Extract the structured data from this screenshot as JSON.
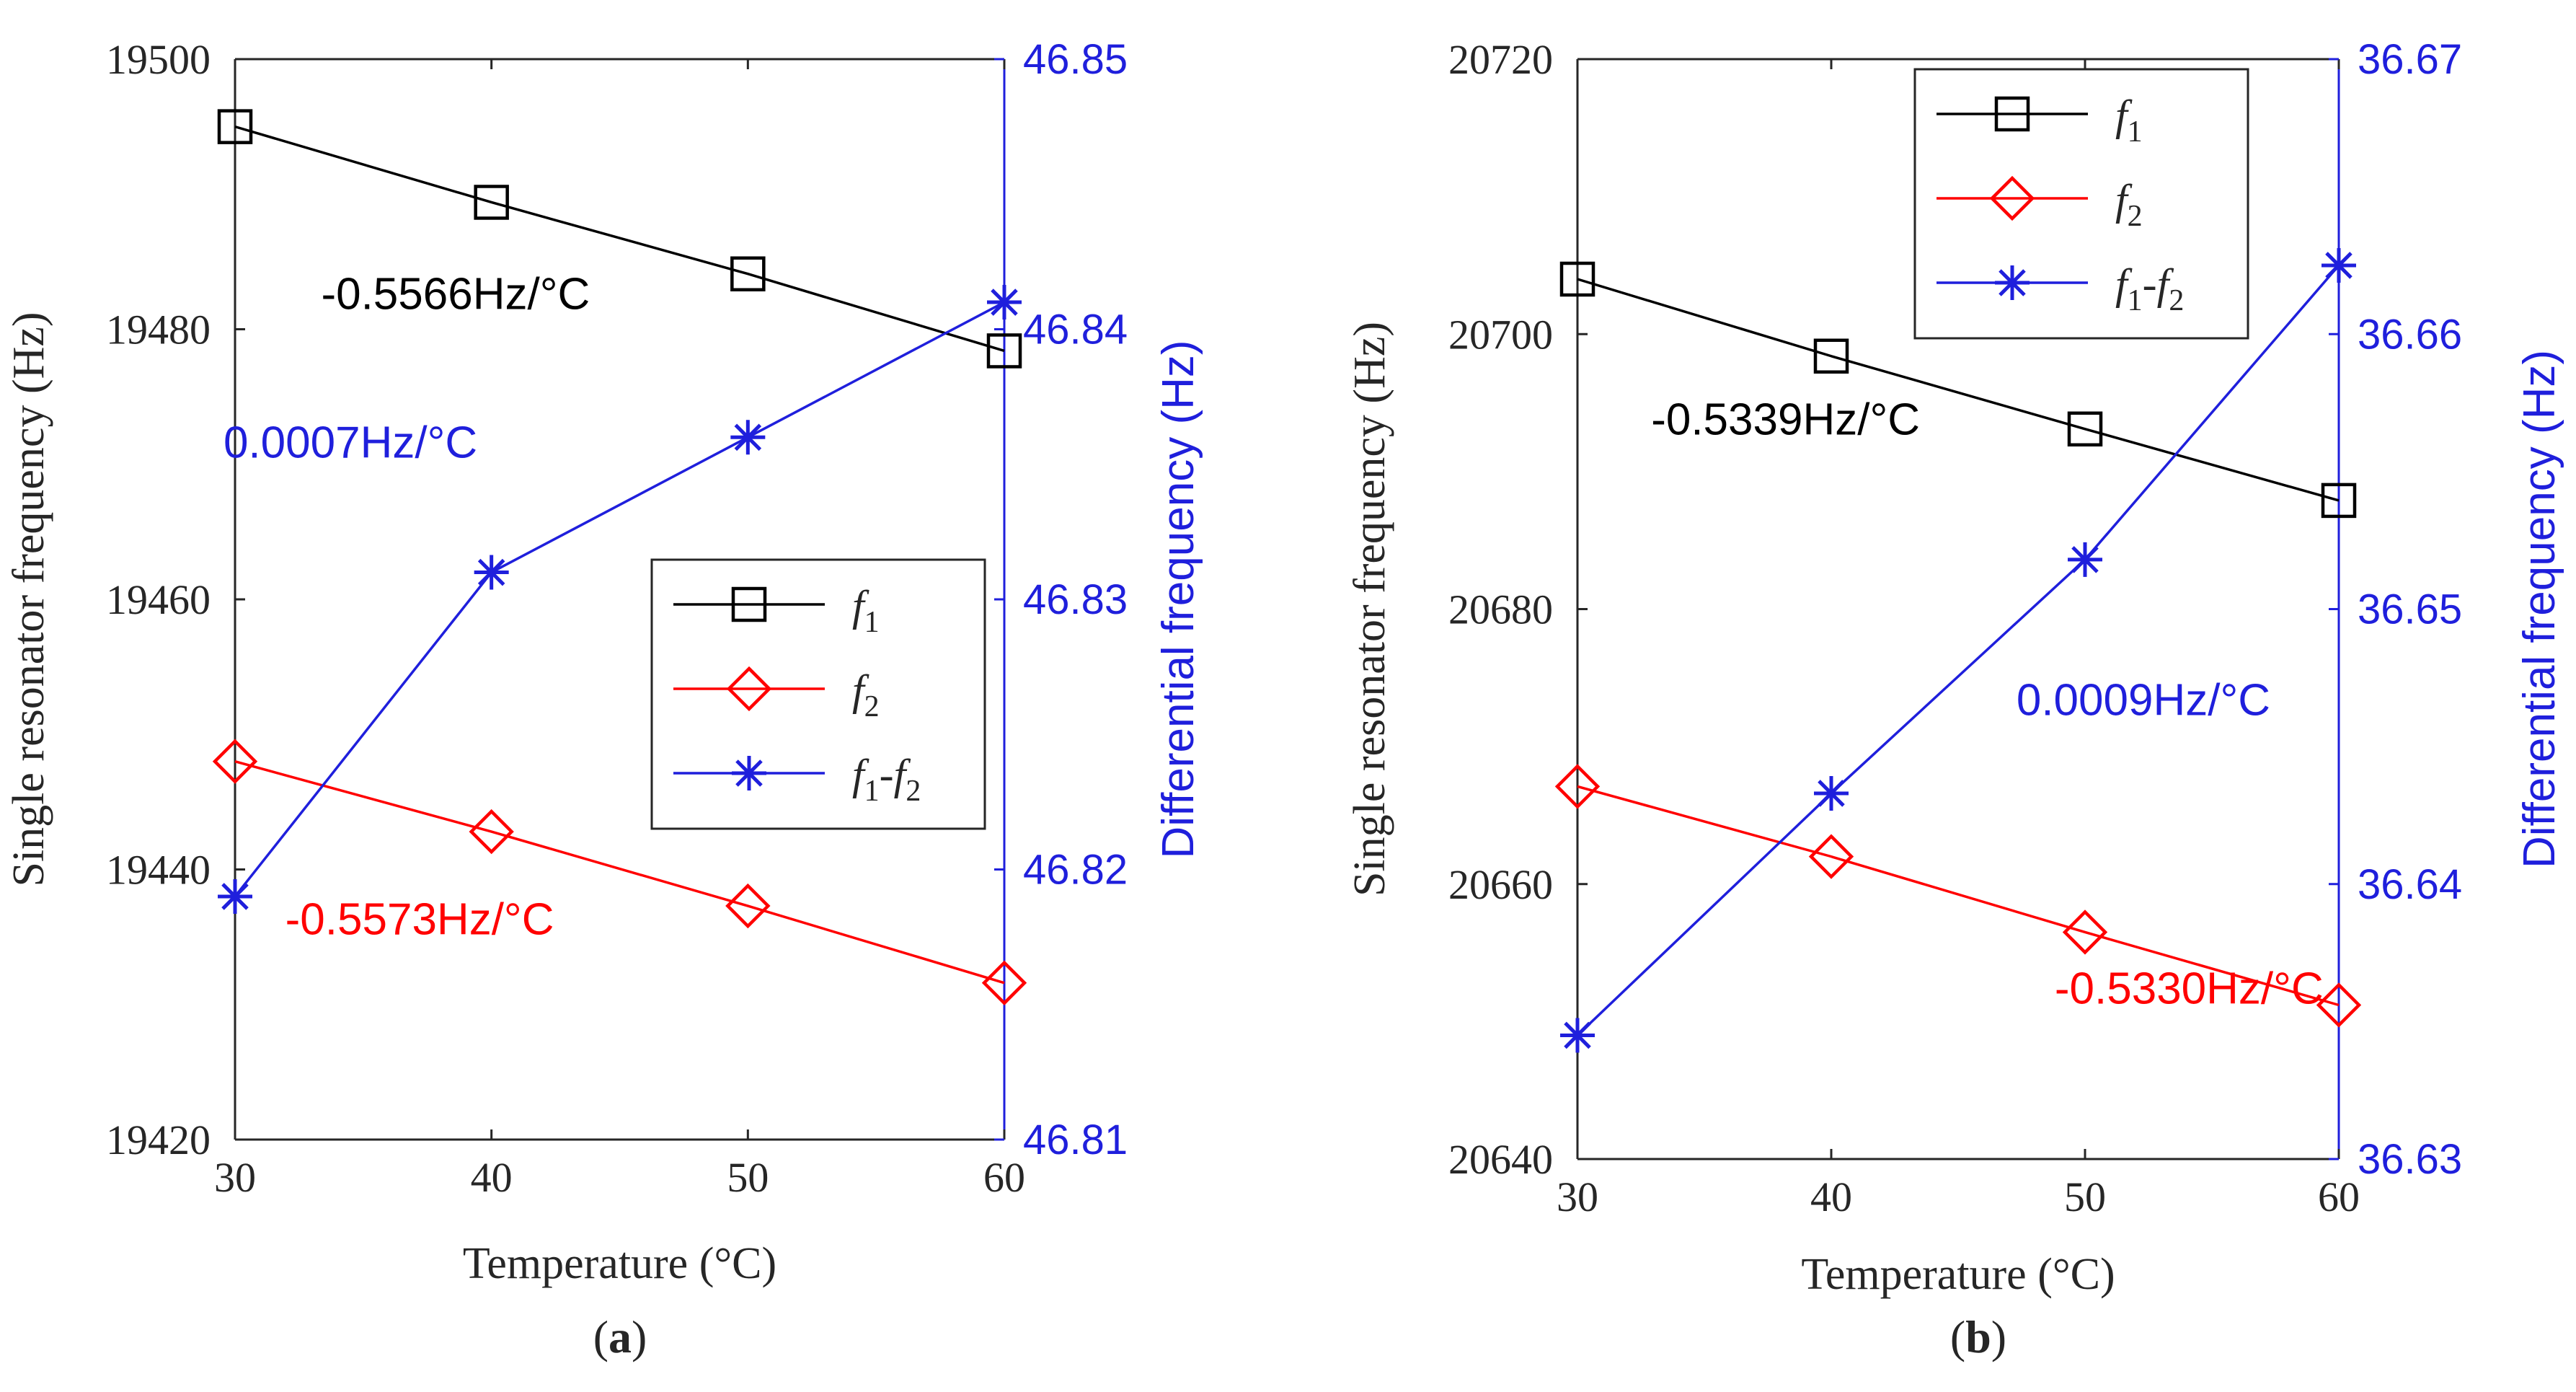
{
  "chart_data": [
    {
      "type": "line",
      "panel_label": "(a)",
      "xlabel": "Temperature (°C)",
      "ylabel_left": "Single resonator frequency (Hz)",
      "ylabel_right": "Differential frequency (Hz)",
      "x": [
        30,
        40,
        50,
        60
      ],
      "xticks": [
        "30",
        "40",
        "50",
        "60"
      ],
      "xlim": [
        30,
        60
      ],
      "ylim_left": [
        19420,
        19500
      ],
      "yticks_left": [
        "19420",
        "19440",
        "19460",
        "19480",
        "19500"
      ],
      "ylim_right": [
        46.81,
        46.85
      ],
      "yticks_right": [
        "46.81",
        "46.82",
        "46.83",
        "46.84",
        "46.85"
      ],
      "right_axis_color": "#1f1fdc",
      "legend_position": "center-right",
      "series": [
        {
          "name": "f1",
          "legend_main": "f",
          "legend_sub": "1",
          "color": "#000000",
          "marker": "square",
          "axis": "left",
          "values": [
            19495.0,
            19489.4,
            19484.1,
            19478.4
          ]
        },
        {
          "name": "f2",
          "legend_main": "f",
          "legend_sub": "2",
          "color": "#ff0000",
          "marker": "diamond",
          "axis": "left",
          "values": [
            19448.0,
            19442.8,
            19437.3,
            19431.6
          ]
        },
        {
          "name": "f1-f2",
          "legend_main": "f",
          "legend_sub": "1",
          "legend_mid": "-f",
          "legend_sub2": "2",
          "color": "#1f1fdc",
          "marker": "asterisk",
          "axis": "right",
          "values": [
            46.819,
            46.831,
            46.836,
            46.841
          ]
        }
      ],
      "annotations": [
        {
          "text": "-0.5566Hz/°C",
          "color": "#000000",
          "at_x": 38.6,
          "at_y_left": 19481.5
        },
        {
          "text": "0.0007Hz/°C",
          "color": "#1f1fdc",
          "at_x": 34.5,
          "at_y_left": 19470.5
        },
        {
          "text": "-0.5573Hz/°C",
          "color": "#ff0000",
          "at_x": 37.2,
          "at_y_left": 19435.2
        }
      ]
    },
    {
      "type": "line",
      "panel_label": "(b)",
      "xlabel": "Temperature (°C)",
      "ylabel_left": "Single resonator frequency (Hz)",
      "ylabel_right": "Differential frequency (Hz)",
      "x": [
        30,
        40,
        50,
        60
      ],
      "xticks": [
        "30",
        "40",
        "50",
        "60"
      ],
      "xlim": [
        30,
        60
      ],
      "ylim_left": [
        20640,
        20720
      ],
      "yticks_left": [
        "20640",
        "20660",
        "20680",
        "20700",
        "20720"
      ],
      "ylim_right": [
        36.63,
        36.67
      ],
      "yticks_right": [
        "36.63",
        "36.64",
        "36.65",
        "36.66",
        "36.67"
      ],
      "right_axis_color": "#1f1fdc",
      "legend_position": "top-center",
      "series": [
        {
          "name": "f1",
          "legend_main": "f",
          "legend_sub": "1",
          "color": "#000000",
          "marker": "square",
          "axis": "left",
          "values": [
            20704.0,
            20698.4,
            20693.1,
            20687.9
          ]
        },
        {
          "name": "f2",
          "legend_main": "f",
          "legend_sub": "2",
          "color": "#ff0000",
          "marker": "diamond",
          "axis": "left",
          "values": [
            20667.1,
            20662.0,
            20656.5,
            20651.2
          ]
        },
        {
          "name": "f1-f2",
          "legend_main": "f",
          "legend_sub": "1",
          "legend_mid": "-f",
          "legend_sub2": "2",
          "color": "#1f1fdc",
          "marker": "asterisk",
          "axis": "right",
          "values": [
            36.6345,
            36.6433,
            36.6518,
            36.6625
          ]
        }
      ],
      "annotations": [
        {
          "text": "-0.5339Hz/°C",
          "color": "#000000",
          "at_x": 38.2,
          "at_y_left": 20692.7
        },
        {
          "text": "0.0009Hz/°C",
          "color": "#1f1fdc",
          "at_x": 52.3,
          "at_y_left": 20672.3
        },
        {
          "text": "-0.5330Hz/°C",
          "color": "#ff0000",
          "at_x": 54.1,
          "at_y_left": 20651.3
        }
      ]
    }
  ]
}
